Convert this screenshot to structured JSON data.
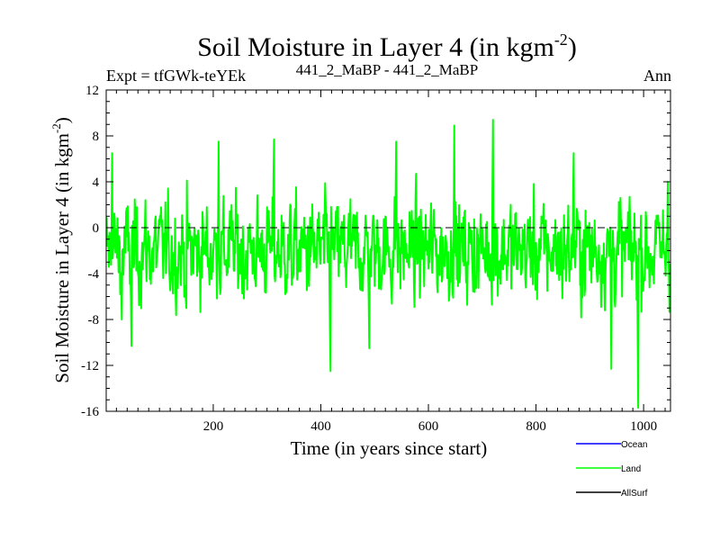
{
  "chart_data": {
    "type": "line",
    "title_main": "Soil Moisture in Layer 4 (in kgm",
    "title_exp": "-2",
    "title_close": ")",
    "subtitle_left": "Expt = tfGWk-teYEk",
    "subtitle_center": "441_2_MaBP - 441_2_MaBP",
    "subtitle_right": "Ann",
    "xlabel": "Time (in years since start)",
    "ylabel_main": "Soil Moisture in Layer 4 (in kgm",
    "ylabel_exp": "-2",
    "ylabel_close": ")",
    "xlim": [
      1,
      1050
    ],
    "ylim": [
      -16,
      12
    ],
    "xticks": [
      200,
      400,
      600,
      800,
      1000
    ],
    "yticks": [
      -16,
      -12,
      -8,
      -4,
      0,
      4,
      8,
      12
    ],
    "zero_line": 0,
    "legend": [
      {
        "name": "Ocean",
        "color": "#0000ff"
      },
      {
        "name": "Land",
        "color": "#00ff00"
      },
      {
        "name": "AllSurf",
        "color": "#000000"
      }
    ],
    "series": [
      {
        "name": "Land",
        "color": "#00ff00",
        "x_start": 1,
        "x_end": 1050,
        "n_points": 1050,
        "mean": -2,
        "std": 3,
        "peaks": [
          {
            "x": 12,
            "y": 6.5
          },
          {
            "x": 30,
            "y": -8
          },
          {
            "x": 48,
            "y": -10.3
          },
          {
            "x": 150,
            "y": -7
          },
          {
            "x": 210,
            "y": 7.5
          },
          {
            "x": 313,
            "y": 7.7
          },
          {
            "x": 418,
            "y": -12.5
          },
          {
            "x": 490,
            "y": -10.5
          },
          {
            "x": 540,
            "y": 7.5
          },
          {
            "x": 648,
            "y": 8.9
          },
          {
            "x": 720,
            "y": 9.4
          },
          {
            "x": 870,
            "y": 6.5
          },
          {
            "x": 940,
            "y": -12.3
          },
          {
            "x": 990,
            "y": -15.7
          },
          {
            "x": 1045,
            "y": 4
          }
        ]
      }
    ]
  }
}
